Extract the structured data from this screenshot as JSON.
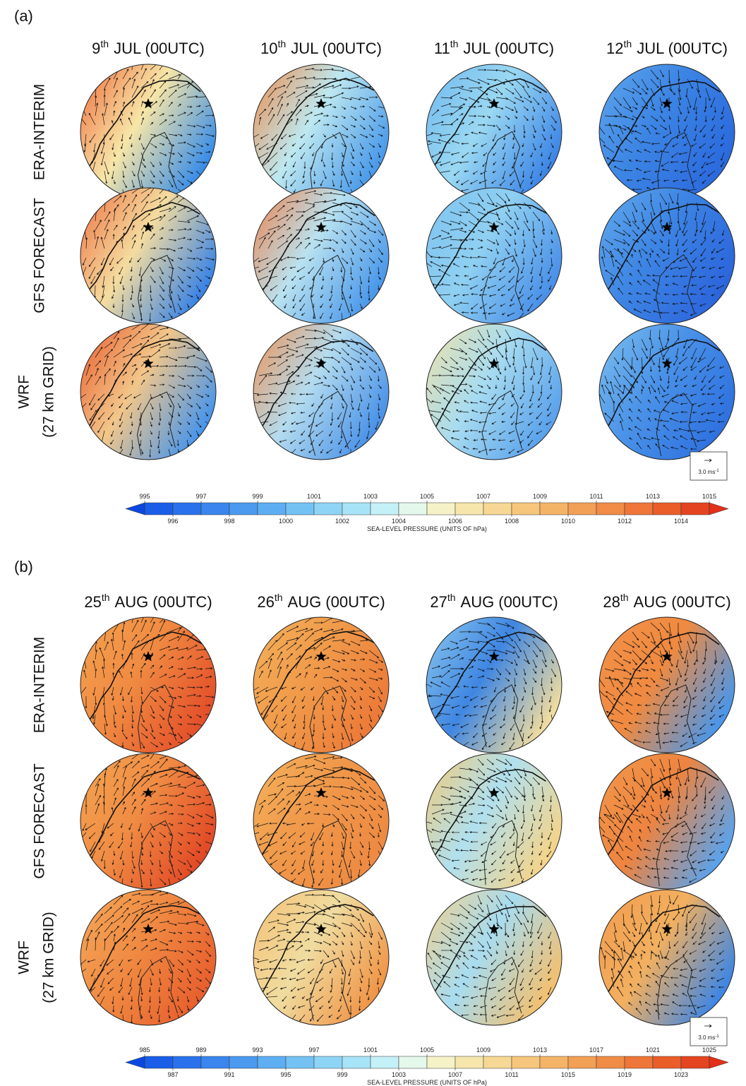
{
  "panels": [
    {
      "label": "(a)",
      "columns": [
        {
          "day": "9",
          "suffix": "th",
          "rest": "JUL (00UTC)"
        },
        {
          "day": "10",
          "suffix": "th",
          "rest": "JUL (00UTC)"
        },
        {
          "day": "11",
          "suffix": "th",
          "rest": "JUL (00UTC)"
        },
        {
          "day": "12",
          "suffix": "th",
          "rest": "JUL (00UTC)"
        }
      ],
      "rows": [
        [
          "ERA-INTERIM"
        ],
        [
          "GFS FORECAST"
        ],
        [
          "WRF",
          "(27 km GRID)"
        ]
      ],
      "colorbar": {
        "top_ticks": [
          995,
          997,
          999,
          1001,
          1003,
          1005,
          1007,
          1009,
          1011,
          1013,
          1015
        ],
        "bottom_ticks": [
          996,
          998,
          1000,
          1002,
          1004,
          1006,
          1008,
          1010,
          1012,
          1014
        ],
        "title": "SEA-LEVEL PRESSURE (UNITS OF hPa)"
      },
      "vector_key": {
        "value": "3.0 ms",
        "exponent": "-1"
      }
    },
    {
      "label": "(b)",
      "columns": [
        {
          "day": "25",
          "suffix": "th",
          "rest": "AUG (00UTC)"
        },
        {
          "day": "26",
          "suffix": "th",
          "rest": "AUG (00UTC)"
        },
        {
          "day": "27",
          "suffix": "th",
          "rest": "AUG (00UTC)"
        },
        {
          "day": "28",
          "suffix": "th",
          "rest": "AUG (00UTC)"
        }
      ],
      "rows": [
        [
          "ERA-INTERIM"
        ],
        [
          "GFS FORECAST"
        ],
        [
          "WRF",
          "(27 km GRID)"
        ]
      ],
      "colorbar": {
        "top_ticks": [
          985,
          989,
          993,
          997,
          1001,
          1005,
          1009,
          1013,
          1017,
          1021,
          1025
        ],
        "bottom_ticks": [
          987,
          991,
          995,
          999,
          1003,
          1007,
          1011,
          1015,
          1019,
          1023
        ],
        "title": "SEA-LEVEL PRESSURE (UNITS OF hPa)"
      },
      "vector_key": {
        "value": "3.0 ms",
        "exponent": "-1"
      }
    }
  ]
}
